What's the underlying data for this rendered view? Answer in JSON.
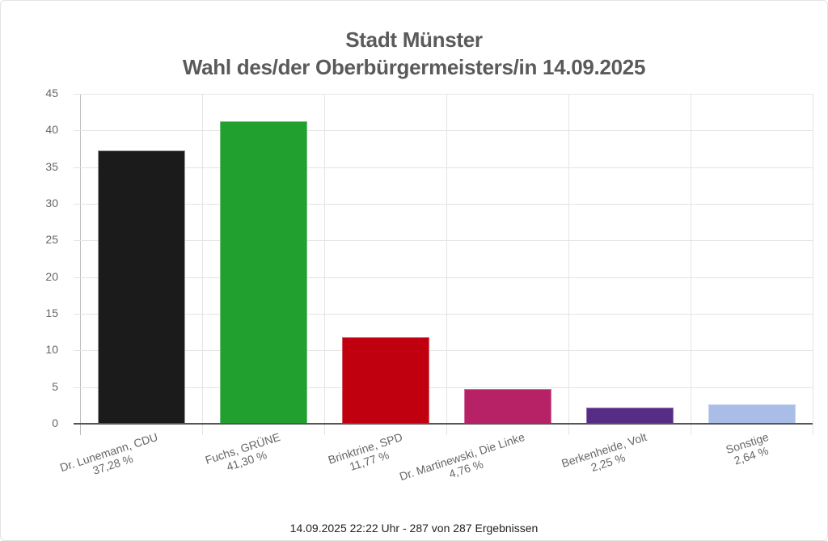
{
  "chart": {
    "title_line1": "Stadt Münster",
    "title_line2": "Wahl des/der Oberbürgermeisters/in 14.09.2025",
    "footer": "14.09.2025 22:22 Uhr - 287 von 287 Ergebnissen",
    "y_ticks": [
      "0",
      "5",
      "10",
      "15",
      "20",
      "25",
      "30",
      "35",
      "40",
      "45"
    ],
    "bars": [
      {
        "name": "Dr. Lunemann, CDU",
        "pct_label": "37,28 %",
        "value": 37.28,
        "color": "#1b1b1b"
      },
      {
        "name": "Fuchs, GRÜNE",
        "pct_label": "41,30 %",
        "value": 41.3,
        "color": "#21a030"
      },
      {
        "name": "Brinktrine, SPD",
        "pct_label": "11,77 %",
        "value": 11.77,
        "color": "#c1000f"
      },
      {
        "name": "Dr. Martinewski, Die Linke",
        "pct_label": "4,76 %",
        "value": 4.76,
        "color": "#b72267"
      },
      {
        "name": "Berkenheide, Volt",
        "pct_label": "2,25 %",
        "value": 2.25,
        "color": "#572c85"
      },
      {
        "name": "Sonstige",
        "pct_label": "2,64 %",
        "value": 2.64,
        "color": "#aabde6"
      }
    ]
  },
  "chart_data": {
    "type": "bar",
    "title": "Stadt Münster — Wahl des/der Oberbürgermeisters/in 14.09.2025",
    "categories": [
      "Dr. Lunemann, CDU",
      "Fuchs, GRÜNE",
      "Brinktrine, SPD",
      "Dr. Martinewski, Die Linke",
      "Berkenheide, Volt",
      "Sonstige"
    ],
    "values": [
      37.28,
      41.3,
      11.77,
      4.76,
      2.25,
      2.64
    ],
    "value_labels": [
      "37,28 %",
      "41,30 %",
      "11,77 %",
      "4,76 %",
      "2,25 %",
      "2,64 %"
    ],
    "colors": [
      "#1b1b1b",
      "#21a030",
      "#c1000f",
      "#b72267",
      "#572c85",
      "#aabde6"
    ],
    "xlabel": "",
    "ylabel": "",
    "ylim": [
      0,
      45
    ],
    "yticks": [
      0,
      5,
      10,
      15,
      20,
      25,
      30,
      35,
      40,
      45
    ],
    "grid": true,
    "legend": "none",
    "footer": "14.09.2025 22:22 Uhr - 287 von 287 Ergebnissen"
  }
}
